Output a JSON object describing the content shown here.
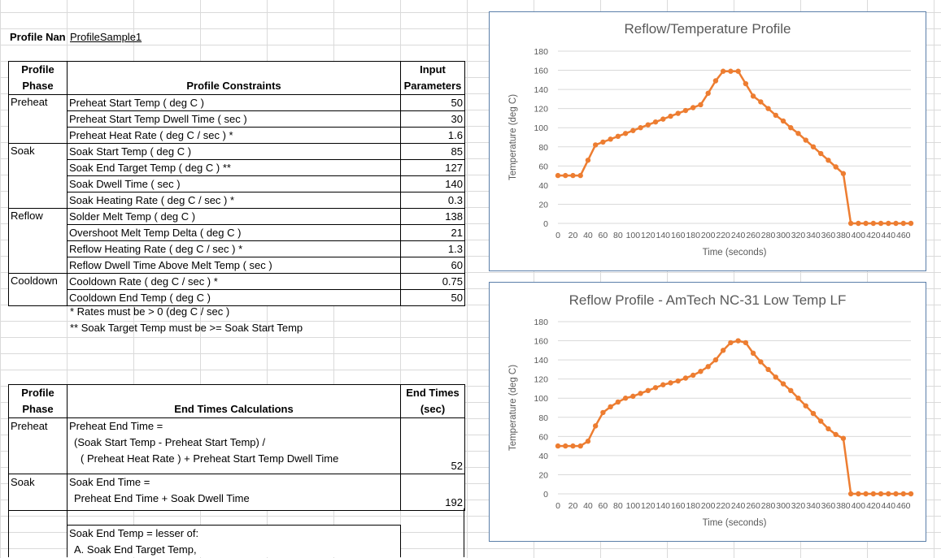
{
  "profile_name": {
    "label": "Profile Nan",
    "value": "ProfileSample1"
  },
  "constraints_table": {
    "headers": {
      "phase": [
        "Profile",
        "Phase"
      ],
      "constraints": "Profile Constraints",
      "input": [
        "Input",
        "Parameters"
      ]
    },
    "rows": [
      {
        "phase": "Preheat",
        "label": "Preheat Start Temp ( deg C )",
        "value": "50"
      },
      {
        "phase": "",
        "label": "Preheat Start Temp Dwell Time ( sec )",
        "value": "30"
      },
      {
        "phase": "",
        "label": "Preheat Heat Rate ( deg C / sec ) *",
        "value": "1.6"
      },
      {
        "phase": "Soak",
        "label": "Soak Start Temp ( deg C )",
        "value": "85"
      },
      {
        "phase": "",
        "label": "Soak End Target Temp ( deg C ) **",
        "value": "127"
      },
      {
        "phase": "",
        "label": "Soak Dwell Time ( sec )",
        "value": "140"
      },
      {
        "phase": "",
        "label": "Soak Heating Rate ( deg C / sec ) *",
        "value": "0.3"
      },
      {
        "phase": "Reflow",
        "label": "Solder Melt Temp ( deg C )",
        "value": "138"
      },
      {
        "phase": "",
        "label": "Overshoot Melt Temp Delta ( deg C )",
        "value": "21"
      },
      {
        "phase": "",
        "label": "Reflow Heating Rate ( deg C / sec ) *",
        "value": "1.3"
      },
      {
        "phase": "",
        "label": "Reflow Dwell Time Above Melt Temp ( sec )",
        "value": "60"
      },
      {
        "phase": "Cooldown",
        "label": "Cooldown Rate ( deg C / sec ) *",
        "value": "0.75"
      },
      {
        "phase": "",
        "label": "Cooldown End Temp ( deg C )",
        "value": "50"
      }
    ],
    "notes": [
      "* Rates must be > 0  (deg C / sec )",
      "** Soak Target Temp must be >= Soak Start Temp"
    ]
  },
  "end_times_table": {
    "headers": {
      "phase": [
        "Profile",
        "Phase"
      ],
      "calc": "End Times Calculations",
      "end": [
        "End Times",
        "(sec)"
      ]
    },
    "preheat": {
      "phase": "Preheat",
      "lines": [
        "Preheat End Time =",
        "(Soak Start Temp - Preheat Start Temp) /",
        "( Preheat Heat Rate ) + Preheat Start Temp Dwell Time"
      ],
      "value": "52"
    },
    "soak": {
      "phase": "Soak",
      "lines": [
        "Soak End Time =",
        "Preheat End Time + Soak Dwell Time"
      ],
      "value": "192"
    },
    "soak_temp": {
      "lines": [
        "Soak End Temp =  lesser of:",
        "A. Soak End Target Temp,"
      ]
    }
  },
  "chart_data": [
    {
      "type": "line",
      "title": "Reflow/Temperature Profile",
      "xlabel": "Time (seconds)",
      "ylabel": "Temperature (deg  C)",
      "ylim": [
        0,
        180
      ],
      "yticks": [
        0,
        20,
        40,
        60,
        80,
        100,
        120,
        140,
        160,
        180
      ],
      "xtick_labels": [
        "0",
        "20",
        "40",
        "60",
        "80",
        "100",
        "120",
        "140",
        "160",
        "180",
        "200",
        "220",
        "240",
        "260",
        "280",
        "300",
        "320",
        "340",
        "360",
        "380",
        "400",
        "420",
        "440",
        "460"
      ],
      "grid": true,
      "color": "#ed7d31",
      "x": [
        0,
        10,
        20,
        30,
        40,
        50,
        60,
        70,
        80,
        90,
        100,
        110,
        120,
        130,
        140,
        150,
        160,
        170,
        180,
        190,
        200,
        210,
        220,
        230,
        240,
        250,
        260,
        270,
        280,
        290,
        300,
        310,
        320,
        330,
        340,
        350,
        360,
        370,
        380,
        390,
        400,
        410,
        420,
        430,
        440,
        450,
        460,
        470
      ],
      "values": [
        50,
        50,
        50,
        50,
        66,
        82,
        85,
        88,
        91,
        94,
        97,
        100,
        103,
        106,
        109,
        112,
        115,
        118,
        121,
        124,
        136,
        149,
        159,
        159,
        159,
        146,
        133,
        127,
        120,
        113,
        107,
        100,
        94,
        87,
        80,
        73,
        66,
        59,
        52,
        0,
        0,
        0,
        0,
        0,
        0,
        0,
        0,
        0
      ]
    },
    {
      "type": "line",
      "title": "Reflow Profile - AmTech NC-31 Low Temp LF",
      "xlabel": "Time (seconds)",
      "ylabel": "Temperature (deg  C)",
      "ylim": [
        0,
        180
      ],
      "yticks": [
        0,
        20,
        40,
        60,
        80,
        100,
        120,
        140,
        160,
        180
      ],
      "xtick_labels": [
        "0",
        "20",
        "40",
        "60",
        "80",
        "100",
        "120",
        "140",
        "160",
        "180",
        "200",
        "220",
        "240",
        "260",
        "280",
        "300",
        "320",
        "340",
        "360",
        "380",
        "400",
        "420",
        "440",
        "460"
      ],
      "grid": true,
      "color": "#ed7d31",
      "x": [
        0,
        10,
        20,
        30,
        40,
        50,
        60,
        70,
        80,
        90,
        100,
        110,
        120,
        130,
        140,
        150,
        160,
        170,
        180,
        190,
        200,
        210,
        220,
        230,
        240,
        250,
        260,
        270,
        280,
        290,
        300,
        310,
        320,
        330,
        340,
        350,
        360,
        370,
        380,
        390,
        400,
        410,
        420,
        430,
        440,
        450,
        460,
        470
      ],
      "values": [
        50,
        50,
        50,
        50,
        55,
        71,
        85,
        91,
        96,
        100,
        102,
        105,
        108,
        111,
        114,
        116,
        118,
        121,
        124,
        128,
        133,
        140,
        150,
        158,
        160,
        158,
        147,
        138,
        130,
        122,
        115,
        108,
        100,
        92,
        84,
        76,
        68,
        62,
        58,
        0,
        0,
        0,
        0,
        0,
        0,
        0,
        0,
        0
      ]
    }
  ]
}
